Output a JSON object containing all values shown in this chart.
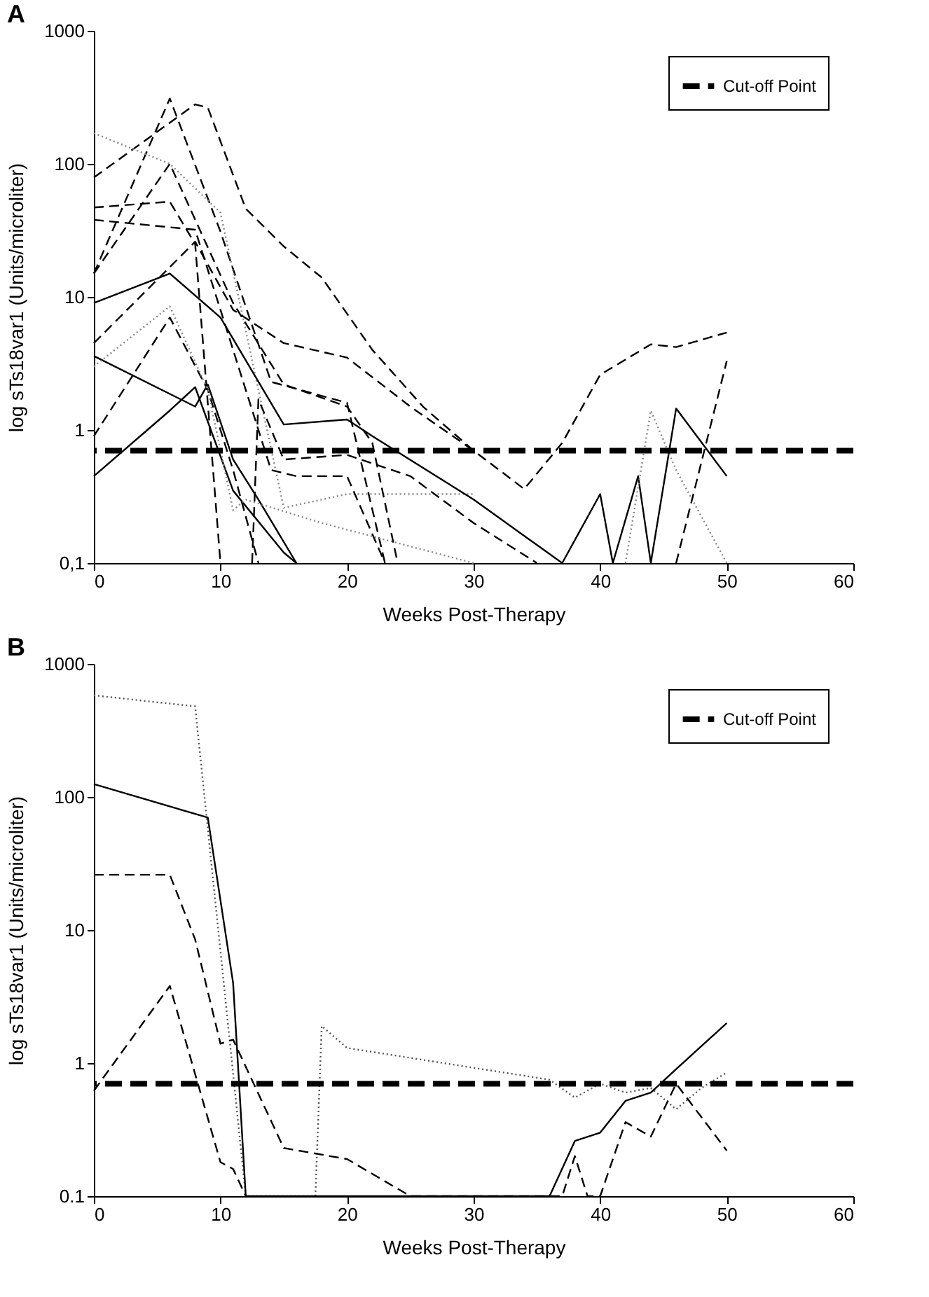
{
  "chart_data": [
    {
      "type": "line",
      "title": "A",
      "xlabel": "Weeks Post-Therapy",
      "ylabel": "log sTs18var1 (Units/microliter)",
      "log": "y",
      "xlim": [
        0,
        60
      ],
      "xticks": [
        0,
        10,
        20,
        30,
        40,
        50,
        60
      ],
      "ylim": [
        0.1,
        1000
      ],
      "yticks": [
        {
          "value": 0.1,
          "label": "0,1"
        },
        1,
        10,
        100,
        1000
      ],
      "grid": false,
      "legend": "top right",
      "marker": "none",
      "ref_lines": [
        {
          "axis": "y",
          "value": 0.7,
          "label": "Cut-off Point",
          "color": "#000000",
          "line_style": "dashed"
        }
      ],
      "series": [
        {
          "color": "#000000",
          "line_style": "dashed",
          "x": [
            0,
            8,
            9,
            12,
            15,
            18,
            22,
            26,
            30,
            34,
            37,
            40,
            44,
            46,
            50
          ],
          "values": [
            79,
            280,
            265,
            46,
            24,
            14,
            4,
            1.5,
            0.7,
            0.36,
            0.8,
            2.6,
            4.4,
            4.2,
            5.4
          ]
        },
        {
          "color": "#000000",
          "line_style": "dashed",
          "x": [
            0,
            6,
            10,
            14,
            20,
            23
          ],
          "values": [
            15,
            310,
            31,
            2.3,
            1.6,
            0.1
          ]
        },
        {
          "color": "#888888",
          "line_style": "dotted",
          "x": [
            0,
            6,
            10,
            15,
            20,
            30
          ],
          "values": [
            170,
            100,
            43,
            0.26,
            0.33,
            0.33
          ]
        },
        {
          "color": "#000000",
          "line_style": "solid",
          "x": [
            0,
            6,
            10,
            15,
            20,
            22,
            30,
            37
          ],
          "values": [
            9,
            15,
            7,
            1.1,
            1.2,
            0.9,
            0.3,
            0.1
          ]
        },
        {
          "color": "#000000",
          "line_style": "dashed",
          "x": [
            0,
            6,
            8,
            10
          ],
          "values": [
            47,
            52,
            25,
            0.1
          ]
        },
        {
          "color": "#000000",
          "line_style": "dashed",
          "x": [
            0,
            8,
            10,
            12,
            14,
            16,
            20,
            23
          ],
          "values": [
            38,
            32,
            8,
            2,
            0.5,
            0.45,
            0.45,
            0.1
          ]
        },
        {
          "color": "#000000",
          "line_style": "dashed",
          "x": [
            0,
            6,
            9,
            11,
            13
          ],
          "values": [
            0.9,
            7,
            2,
            0.5,
            0.1
          ]
        },
        {
          "color": "#000000",
          "line_style": "solid",
          "x": [
            0,
            8,
            9,
            11,
            13,
            16
          ],
          "values": [
            3.6,
            1.5,
            2.2,
            0.6,
            0.3,
            0.1
          ]
        },
        {
          "color": "#000000",
          "line_style": "solid",
          "x": [
            0,
            6,
            8,
            11,
            15,
            16
          ],
          "values": [
            0.45,
            1.4,
            2.1,
            0.35,
            0.12,
            0.1
          ]
        },
        {
          "color": "#000000",
          "line_style": "dashed",
          "x": [
            0,
            8,
            11,
            15,
            20,
            25,
            30
          ],
          "values": [
            4.5,
            26,
            8,
            4.5,
            3.5,
            1.5,
            0.7
          ]
        },
        {
          "color": "#000000",
          "line_style": "dashed",
          "x": [
            0,
            6,
            11,
            15,
            20,
            22,
            24
          ],
          "values": [
            15,
            100,
            9,
            2.2,
            1.5,
            0.8,
            0.1
          ]
        },
        {
          "color": "#000000",
          "line_style": "dashed",
          "x": [
            12.5,
            13,
            15,
            20,
            25,
            30,
            35
          ],
          "values": [
            0.1,
            1.7,
            0.6,
            0.65,
            0.45,
            0.2,
            0.1
          ]
        },
        {
          "color": "#888888",
          "line_style": "dotted",
          "x": [
            0,
            6,
            9,
            11,
            12,
            18,
            30
          ],
          "values": [
            3,
            8.5,
            2,
            0.25,
            0.3,
            0.2,
            0.1
          ]
        },
        {
          "color": "#000000",
          "line_style": "solid",
          "x": [
            37,
            40,
            41,
            43,
            44,
            46,
            50
          ],
          "values": [
            0.1,
            0.33,
            0.1,
            0.45,
            0.1,
            1.45,
            0.45
          ]
        },
        {
          "color": "#888888",
          "line_style": "dotted",
          "x": [
            42,
            44,
            46,
            50
          ],
          "values": [
            0.1,
            1.4,
            0.5,
            0.1
          ]
        },
        {
          "color": "#000000",
          "line_style": "dashed",
          "x": [
            46,
            50
          ],
          "values": [
            0.1,
            3.3
          ]
        }
      ]
    },
    {
      "type": "line",
      "title": "B",
      "xlabel": "Weeks Post-Therapy",
      "ylabel": "log sTs18var1 (Units/microliter)",
      "log": "y",
      "xlim": [
        0,
        60
      ],
      "xticks": [
        0,
        10,
        20,
        30,
        40,
        50,
        60
      ],
      "ylim": [
        0.1,
        1000
      ],
      "yticks": [
        0.1,
        1,
        10,
        100,
        1000
      ],
      "grid": false,
      "legend": "top right",
      "marker": "none",
      "ref_lines": [
        {
          "axis": "y",
          "value": 0.7,
          "label": "Cut-off Point",
          "color": "#000000",
          "line_style": "dashed"
        }
      ],
      "series": [
        {
          "color": "#555555",
          "line_style": "dotted",
          "x": [
            0,
            8,
            12,
            17.5,
            18,
            20,
            36,
            38,
            40,
            42,
            44,
            46,
            48,
            50
          ],
          "values": [
            580,
            480,
            0.1,
            0.1,
            1.9,
            1.3,
            0.75,
            0.55,
            0.7,
            0.6,
            0.65,
            0.45,
            0.65,
            0.85
          ]
        },
        {
          "color": "#000000",
          "line_style": "solid",
          "x": [
            0,
            9,
            11,
            12,
            36,
            38,
            40,
            42,
            44,
            46,
            50
          ],
          "values": [
            125,
            70,
            4,
            0.1,
            0.1,
            0.26,
            0.3,
            0.52,
            0.6,
            0.9,
            2.0
          ]
        },
        {
          "color": "#000000",
          "line_style": "dashed",
          "x": [
            0,
            6,
            8,
            10,
            11,
            15,
            20,
            25,
            37,
            38,
            39,
            40,
            42,
            44,
            46,
            50
          ],
          "values": [
            26,
            26,
            8.5,
            1.4,
            1.5,
            0.23,
            0.19,
            0.1,
            0.1,
            0.2,
            0.1,
            0.1,
            0.36,
            0.28,
            0.7,
            0.22
          ]
        },
        {
          "color": "#000000",
          "line_style": "dashed",
          "x": [
            0,
            6,
            10,
            11,
            12
          ],
          "values": [
            0.62,
            3.8,
            0.18,
            0.16,
            0.1
          ]
        }
      ]
    }
  ]
}
